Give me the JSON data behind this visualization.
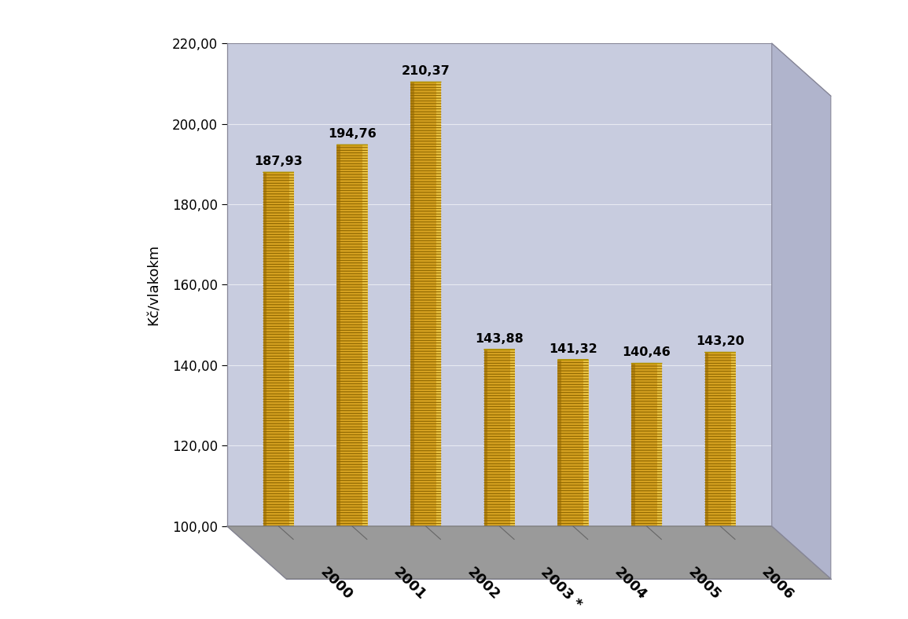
{
  "categories": [
    "2000",
    "2001",
    "2002",
    "2003 *",
    "2004",
    "2005",
    "2006"
  ],
  "values": [
    187.93,
    194.76,
    210.37,
    143.88,
    141.32,
    140.46,
    143.2
  ],
  "labels": [
    "187,93",
    "194,76",
    "210,37",
    "143,88",
    "141,32",
    "140,46",
    "143,20"
  ],
  "ylabel": "Kč/vlakokm",
  "ymin": 100.0,
  "ymax": 220.0,
  "yticks": [
    100.0,
    120.0,
    140.0,
    160.0,
    180.0,
    200.0,
    220.0
  ],
  "ytick_labels": [
    "100,00",
    "120,00",
    "140,00",
    "160,00",
    "180,00",
    "200,00",
    "220,00"
  ],
  "wall_color": "#c8ccdf",
  "wall_right_color": "#b0b4cc",
  "floor_color": "#9a9a9a",
  "coin_dark": "#b08010",
  "coin_mid": "#d4a020",
  "coin_light": "#e8c040",
  "coin_top": "#f0d060",
  "coin_ring": "#c09018",
  "label_fontsize": 11.5,
  "tick_fontsize": 12,
  "ylabel_fontsize": 13,
  "figwidth": 11.55,
  "figheight": 7.88,
  "dpi": 100
}
